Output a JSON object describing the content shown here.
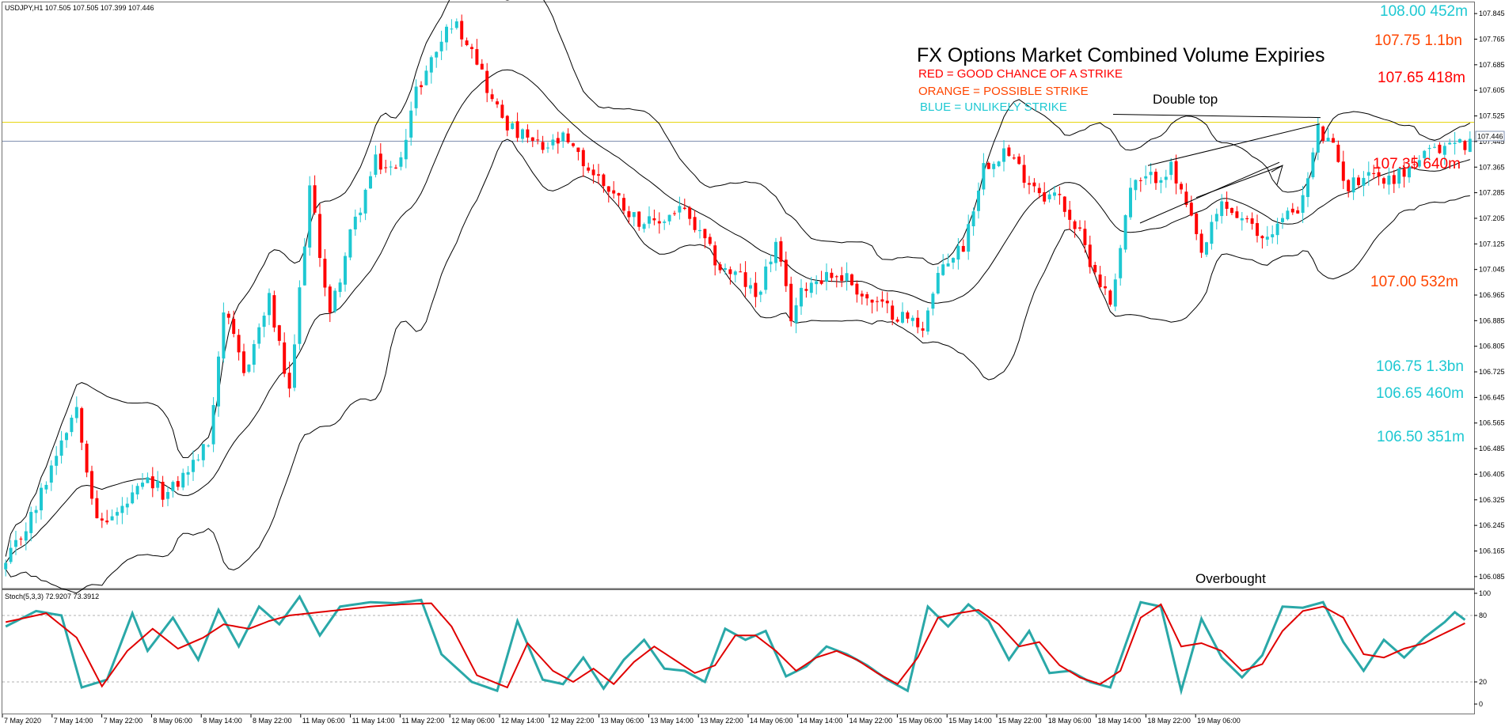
{
  "symbol_header": "USDJPY,H1  107.505 107.505 107.399 107.446",
  "stoch_header": "Stoch(5,3,3) 72.9207 73.3912",
  "title": "FX Options Market Combined Volume Expiries",
  "legend": [
    {
      "text": "RED = GOOD CHANCE OF A STRIKE",
      "color": "#ff0000"
    },
    {
      "text": "ORANGE = POSSIBLE STRIKE",
      "color": "#ff4500"
    },
    {
      "text": "BLUE = UNLIKELY STRIKE",
      "color": "#1ec8d2"
    }
  ],
  "annotations": {
    "double_top": "Double top",
    "overbought": "Overbought"
  },
  "expiries": [
    {
      "price": 108.0,
      "label": "108.00 452m",
      "color": "#1ec8d2"
    },
    {
      "price": 107.75,
      "label": "107.75 1.1bn",
      "color": "#ff4500"
    },
    {
      "price": 107.65,
      "label": "107.65 418m",
      "color": "#ff0000"
    },
    {
      "price": 107.35,
      "label": "107.35 640m",
      "color": "#ff0000"
    },
    {
      "price": 107.0,
      "label": "107.00 532m",
      "color": "#ff4500"
    },
    {
      "price": 106.75,
      "label": "106.75 1.3bn",
      "color": "#1ec8d2"
    },
    {
      "price": 106.65,
      "label": "106.65 460m",
      "color": "#1ec8d2"
    },
    {
      "price": 106.5,
      "label": "106.50 351m",
      "color": "#1ec8d2"
    }
  ],
  "current_price_label": "107.446",
  "colors": {
    "bull": "#1ec8d2",
    "bear": "#ff0000",
    "band": "#000000",
    "hline_yellow": "#e6d200",
    "hline_price": "#8090b0",
    "stoch_k": "#2aa8a8",
    "stoch_d": "#e00000"
  },
  "chart_data": {
    "type": "candlestick",
    "symbol": "USDJPY",
    "timeframe": "H1",
    "indicators": [
      "Bollinger Bands",
      "Stochastic (5,3,3)"
    ],
    "price_axis": {
      "ylim": [
        106.05,
        107.88
      ],
      "ticks": [
        "107.845",
        "107.765",
        "107.685",
        "107.605",
        "107.525",
        "107.445",
        "107.365",
        "107.285",
        "107.205",
        "107.125",
        "107.045",
        "106.965",
        "106.885",
        "106.805",
        "106.725",
        "106.645",
        "106.565",
        "106.485",
        "106.405",
        "106.325",
        "106.245",
        "106.165",
        "106.085"
      ]
    },
    "stoch_axis": {
      "ylim": [
        0,
        100
      ],
      "ticks": [
        "100",
        "80",
        "20",
        "0"
      ],
      "levels": [
        80,
        20
      ]
    },
    "time_labels": [
      "7 May 2020",
      "7 May 14:00",
      "7 May 22:00",
      "8 May 06:00",
      "8 May 14:00",
      "8 May 22:00",
      "11 May 06:00",
      "11 May 14:00",
      "11 May 22:00",
      "12 May 06:00",
      "12 May 14:00",
      "12 May 22:00",
      "13 May 06:00",
      "13 May 14:00",
      "13 May 22:00",
      "14 May 06:00",
      "14 May 14:00",
      "14 May 22:00",
      "15 May 06:00",
      "15 May 14:00",
      "15 May 22:00",
      "18 May 06:00",
      "18 May 14:00",
      "18 May 22:00",
      "19 May 06:00"
    ],
    "close_anchors": [
      [
        0,
        106.12
      ],
      [
        6,
        106.3
      ],
      [
        11,
        106.52
      ],
      [
        14,
        106.62
      ],
      [
        18,
        106.25
      ],
      [
        22,
        106.28
      ],
      [
        28,
        106.38
      ],
      [
        32,
        106.34
      ],
      [
        36,
        106.42
      ],
      [
        40,
        106.5
      ],
      [
        43,
        106.92
      ],
      [
        47,
        106.72
      ],
      [
        52,
        106.95
      ],
      [
        56,
        106.65
      ],
      [
        60,
        107.3
      ],
      [
        64,
        106.9
      ],
      [
        68,
        107.15
      ],
      [
        73,
        107.38
      ],
      [
        77,
        107.35
      ],
      [
        81,
        107.6
      ],
      [
        84,
        107.7
      ],
      [
        88,
        107.82
      ],
      [
        92,
        107.75
      ],
      [
        96,
        107.57
      ],
      [
        100,
        107.48
      ],
      [
        106,
        107.42
      ],
      [
        110,
        107.45
      ],
      [
        115,
        107.36
      ],
      [
        119,
        107.3
      ],
      [
        124,
        107.21
      ],
      [
        128,
        107.18
      ],
      [
        133,
        107.24
      ],
      [
        137,
        107.15
      ],
      [
        141,
        107.05
      ],
      [
        145,
        107.02
      ],
      [
        148,
        106.96
      ],
      [
        152,
        107.12
      ],
      [
        155,
        106.9
      ],
      [
        158,
        107.0
      ],
      [
        162,
        107.03
      ],
      [
        166,
        107.02
      ],
      [
        170,
        106.95
      ],
      [
        174,
        106.92
      ],
      [
        178,
        106.89
      ],
      [
        181,
        106.87
      ],
      [
        185,
        107.06
      ],
      [
        189,
        107.12
      ],
      [
        193,
        107.37
      ],
      [
        197,
        107.42
      ],
      [
        201,
        107.34
      ],
      [
        205,
        107.28
      ],
      [
        208,
        107.27
      ],
      [
        212,
        107.15
      ],
      [
        215,
        107.04
      ],
      [
        218,
        106.94
      ],
      [
        222,
        107.3
      ],
      [
        226,
        107.33
      ],
      [
        230,
        107.36
      ],
      [
        233,
        107.24
      ],
      [
        236,
        107.09
      ],
      [
        240,
        107.25
      ],
      [
        244,
        107.2
      ],
      [
        248,
        107.14
      ],
      [
        252,
        107.2
      ],
      [
        256,
        107.26
      ],
      [
        259,
        107.48
      ],
      [
        262,
        107.42
      ],
      [
        265,
        107.3
      ],
      [
        269,
        107.36
      ],
      [
        272,
        107.32
      ],
      [
        276,
        107.35
      ],
      [
        279,
        107.39
      ],
      [
        283,
        107.42
      ],
      [
        285,
        107.44
      ]
    ],
    "stoch_k_anchors": [
      [
        0,
        70
      ],
      [
        6,
        84
      ],
      [
        11,
        80
      ],
      [
        15,
        15
      ],
      [
        20,
        22
      ],
      [
        25,
        82
      ],
      [
        28,
        48
      ],
      [
        33,
        78
      ],
      [
        38,
        40
      ],
      [
        42,
        85
      ],
      [
        46,
        52
      ],
      [
        50,
        88
      ],
      [
        54,
        72
      ],
      [
        58,
        97
      ],
      [
        62,
        62
      ],
      [
        66,
        88
      ],
      [
        72,
        92
      ],
      [
        77,
        91
      ],
      [
        82,
        94
      ],
      [
        86,
        45
      ],
      [
        92,
        20
      ],
      [
        97,
        12
      ],
      [
        101,
        75
      ],
      [
        106,
        22
      ],
      [
        110,
        18
      ],
      [
        114,
        42
      ],
      [
        118,
        14
      ],
      [
        122,
        40
      ],
      [
        126,
        58
      ],
      [
        130,
        32
      ],
      [
        134,
        30
      ],
      [
        138,
        20
      ],
      [
        142,
        68
      ],
      [
        146,
        58
      ],
      [
        150,
        66
      ],
      [
        154,
        25
      ],
      [
        158,
        34
      ],
      [
        162,
        52
      ],
      [
        166,
        45
      ],
      [
        170,
        35
      ],
      [
        174,
        22
      ],
      [
        178,
        12
      ],
      [
        182,
        88
      ],
      [
        186,
        70
      ],
      [
        190,
        90
      ],
      [
        194,
        75
      ],
      [
        198,
        40
      ],
      [
        202,
        66
      ],
      [
        206,
        28
      ],
      [
        210,
        30
      ],
      [
        214,
        20
      ],
      [
        218,
        15
      ],
      [
        224,
        92
      ],
      [
        228,
        88
      ],
      [
        232,
        12
      ],
      [
        236,
        77
      ],
      [
        240,
        42
      ],
      [
        244,
        24
      ],
      [
        248,
        44
      ],
      [
        252,
        88
      ],
      [
        256,
        87
      ],
      [
        260,
        92
      ],
      [
        264,
        56
      ],
      [
        268,
        30
      ],
      [
        272,
        58
      ],
      [
        276,
        42
      ],
      [
        280,
        60
      ],
      [
        284,
        74
      ],
      [
        286,
        83
      ],
      [
        288,
        76
      ]
    ],
    "stoch_d_anchors": [
      [
        0,
        74
      ],
      [
        8,
        82
      ],
      [
        14,
        60
      ],
      [
        19,
        16
      ],
      [
        24,
        48
      ],
      [
        29,
        68
      ],
      [
        34,
        50
      ],
      [
        39,
        60
      ],
      [
        43,
        72
      ],
      [
        48,
        68
      ],
      [
        52,
        75
      ],
      [
        56,
        80
      ],
      [
        60,
        82
      ],
      [
        66,
        85
      ],
      [
        72,
        88
      ],
      [
        78,
        90
      ],
      [
        84,
        91
      ],
      [
        88,
        70
      ],
      [
        93,
        26
      ],
      [
        99,
        15
      ],
      [
        103,
        55
      ],
      [
        108,
        30
      ],
      [
        112,
        20
      ],
      [
        116,
        32
      ],
      [
        120,
        18
      ],
      [
        124,
        38
      ],
      [
        128,
        52
      ],
      [
        132,
        40
      ],
      [
        136,
        28
      ],
      [
        140,
        35
      ],
      [
        144,
        62
      ],
      [
        148,
        62
      ],
      [
        152,
        48
      ],
      [
        156,
        30
      ],
      [
        160,
        42
      ],
      [
        164,
        48
      ],
      [
        168,
        40
      ],
      [
        172,
        28
      ],
      [
        176,
        18
      ],
      [
        180,
        42
      ],
      [
        184,
        78
      ],
      [
        188,
        82
      ],
      [
        192,
        85
      ],
      [
        196,
        72
      ],
      [
        200,
        52
      ],
      [
        204,
        56
      ],
      [
        208,
        35
      ],
      [
        212,
        24
      ],
      [
        216,
        18
      ],
      [
        220,
        30
      ],
      [
        224,
        78
      ],
      [
        228,
        90
      ],
      [
        232,
        52
      ],
      [
        236,
        55
      ],
      [
        240,
        48
      ],
      [
        244,
        30
      ],
      [
        248,
        36
      ],
      [
        252,
        66
      ],
      [
        256,
        84
      ],
      [
        260,
        88
      ],
      [
        264,
        78
      ],
      [
        268,
        45
      ],
      [
        272,
        42
      ],
      [
        276,
        50
      ],
      [
        280,
        55
      ],
      [
        284,
        64
      ],
      [
        288,
        73
      ]
    ]
  }
}
